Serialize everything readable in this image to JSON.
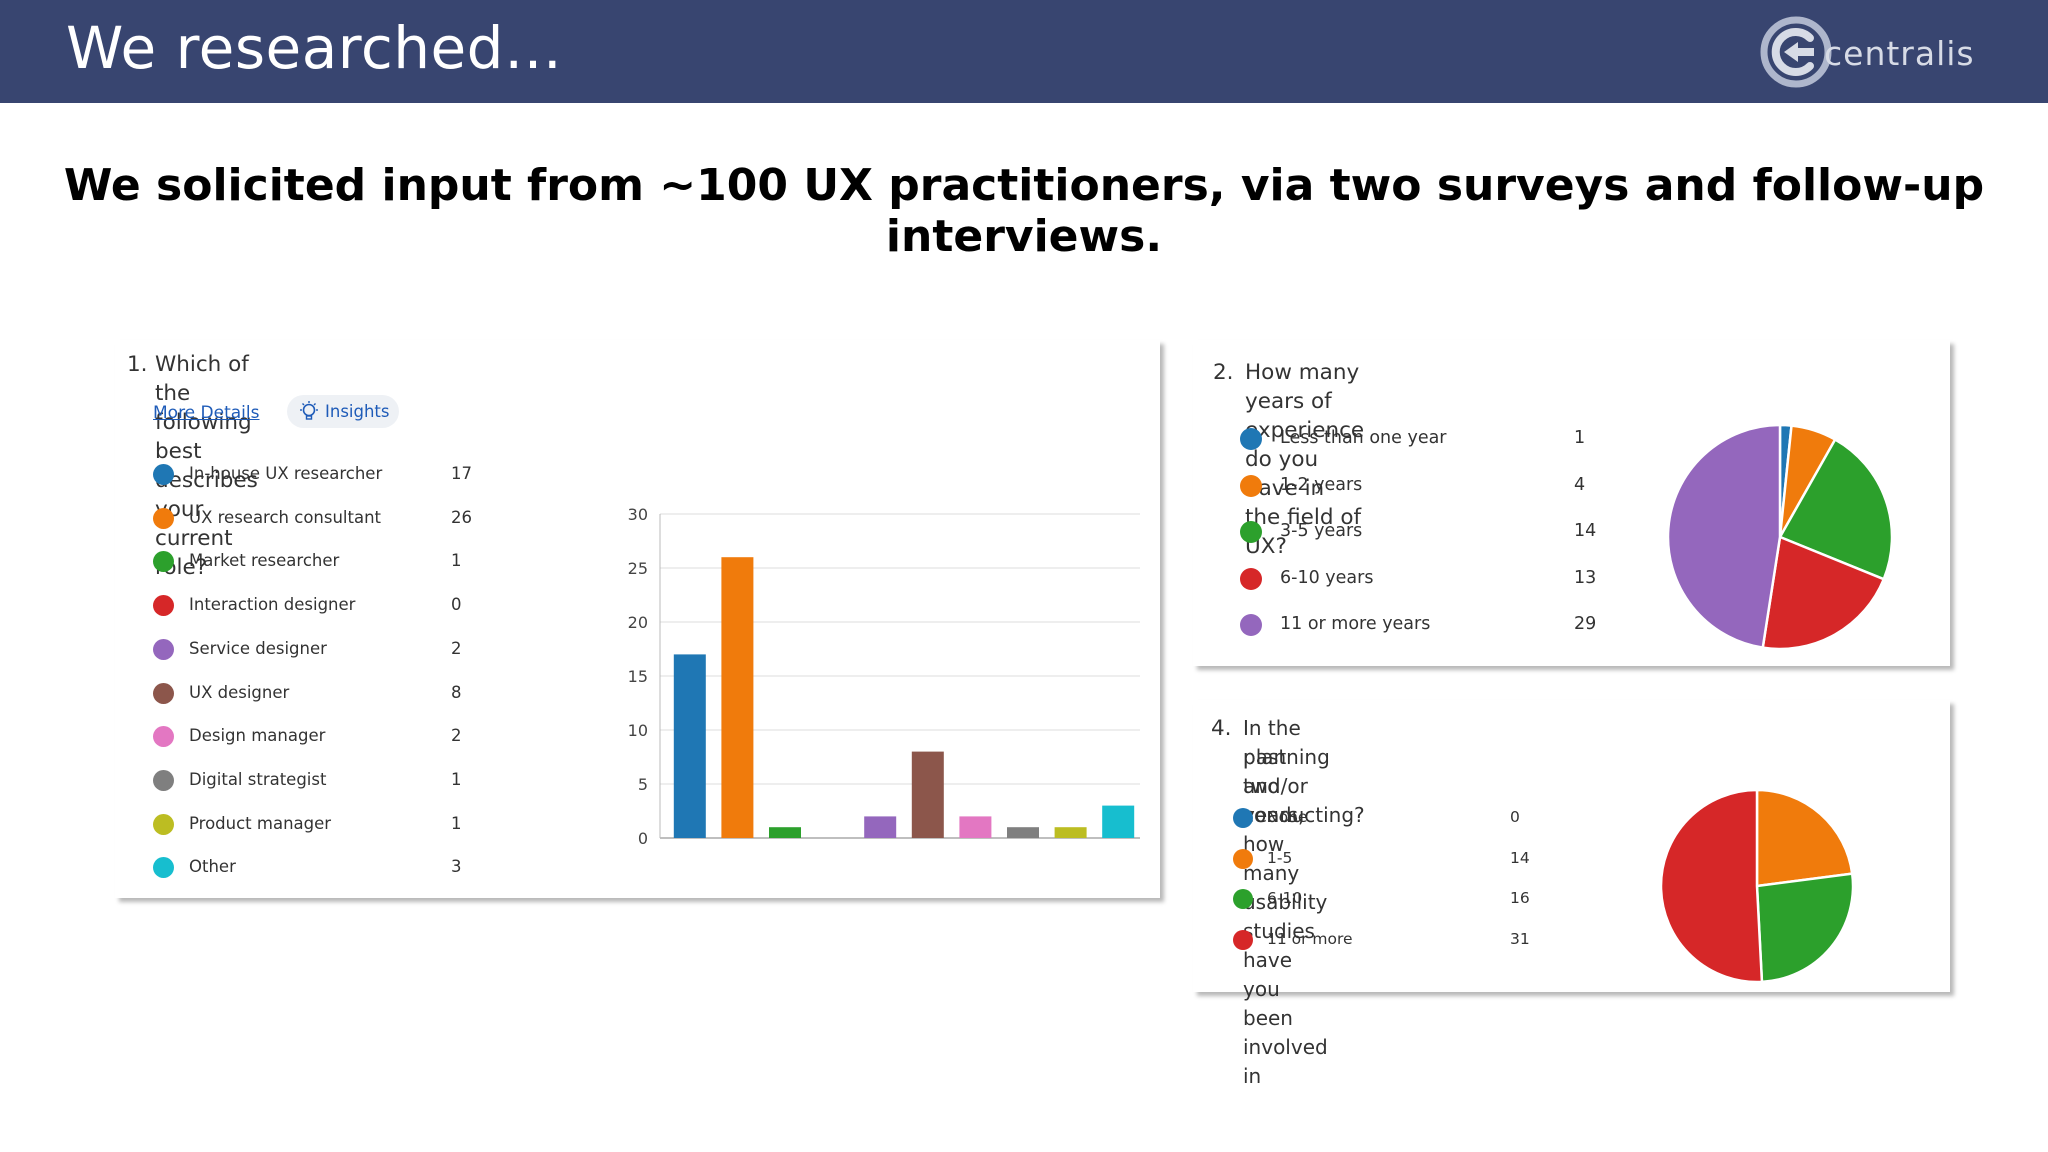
{
  "header": {
    "title": "We researched…",
    "logo_text": "centralis"
  },
  "subtitle": "We solicited input from ~100 UX practitioners, via two surveys and follow-up interviews.",
  "colors": {
    "header_bg": "#384570",
    "blue": "#1f77b4",
    "orange": "#f07b0c",
    "green": "#2ca02c",
    "red": "#d62728",
    "purple": "#9467bd",
    "brown": "#8c564b",
    "pink": "#e377c2",
    "gray": "#7f7f7f",
    "olive": "#bcbd22",
    "teal": "#17becf"
  },
  "card1": {
    "number": "1.",
    "question": "Which of the following best describes your current role?",
    "more_details": "More Details",
    "insights": "Insights"
  },
  "card2": {
    "number": "2.",
    "question": "How many years of experience do you have in the field of UX?"
  },
  "card3": {
    "number": "4.",
    "question_line1": "In the past two years, how many usability studies have you been involved in",
    "question_line2": "planning and/or conducting?"
  },
  "chart_data": [
    {
      "type": "bar",
      "categories": [
        "In-house UX researcher",
        "UX research consultant",
        "Market researcher",
        "Interaction designer",
        "Service designer",
        "UX designer",
        "Design manager",
        "Digital strategist",
        "Product manager",
        "Other"
      ],
      "values": [
        17,
        26,
        1,
        0,
        2,
        8,
        2,
        1,
        1,
        3
      ],
      "value_labels": [
        "17",
        "26",
        "1",
        "0",
        "2",
        "8",
        "2",
        "1",
        "1",
        "3"
      ],
      "colors": [
        "#1f77b4",
        "#f07b0c",
        "#2ca02c",
        "#d62728",
        "#9467bd",
        "#8c564b",
        "#e377c2",
        "#7f7f7f",
        "#bcbd22",
        "#17becf"
      ],
      "ylim": [
        0,
        30
      ],
      "yticks": [
        "0",
        "5",
        "10",
        "15",
        "20",
        "25",
        "30"
      ],
      "grid": true,
      "legend": "left"
    },
    {
      "type": "pie",
      "labels": [
        "Less than one year",
        "1-2 years",
        "3-5 years",
        "6-10 years",
        "11 or more years"
      ],
      "values": [
        1,
        4,
        14,
        13,
        29
      ],
      "value_labels": [
        "1",
        "4",
        "14",
        "13",
        "29"
      ],
      "colors": [
        "#1f77b4",
        "#f07b0c",
        "#2ca02c",
        "#d62728",
        "#9467bd"
      ],
      "legend": "left"
    },
    {
      "type": "pie",
      "labels": [
        "None",
        "1-5",
        "6-10",
        "11 or more"
      ],
      "values": [
        0,
        14,
        16,
        31
      ],
      "value_labels": [
        "0",
        "14",
        "16",
        "31"
      ],
      "colors": [
        "#1f77b4",
        "#f07b0c",
        "#2ca02c",
        "#d62728"
      ],
      "legend": "left"
    }
  ]
}
